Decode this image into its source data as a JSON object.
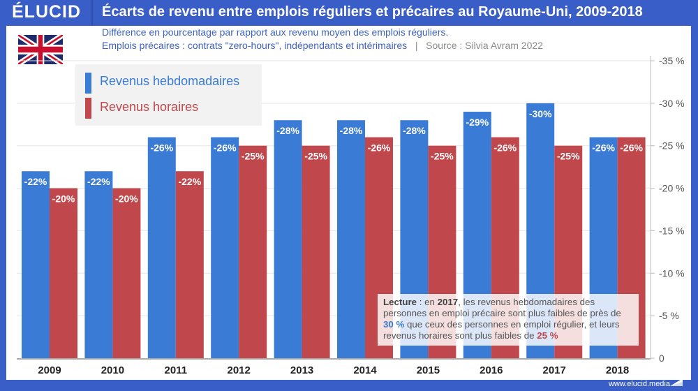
{
  "header": {
    "logo": "ÉLUCID",
    "title": "Écarts de revenu entre emplois réguliers et précaires au Royaume-Uni, 2009-2018",
    "subtitle_line1": "Différence en pourcentage par rapport aux revenu moyen des emplois réguliers.",
    "subtitle_line2": "Emplois précaires : contrats \"zero-hours\", indépendants et intérimaires",
    "separator": "|",
    "source": "Source : Silvia Avram 2022"
  },
  "flag": "united-kingdom-flag",
  "colors": {
    "weekly": "#3a7bd5",
    "hourly": "#c0474b",
    "brand": "#3a5ec8"
  },
  "note": {
    "label": "Lecture",
    "t1": " : en ",
    "year": "2017",
    "t2": ", les revenus hebdomadaires des personnes en emploi précaire sont plus faibles de près de ",
    "weekly_value": "30 %",
    "t3": " que ceux des personnes en emploi régulier, et leurs revenus horaires sont plus faibles de ",
    "hourly_value": "25 %"
  },
  "footer": {
    "url": "www.elucid.media"
  },
  "chart_data": {
    "type": "bar",
    "title": "Écarts de revenu entre emplois réguliers et précaires au Royaume-Uni, 2009-2018",
    "categories": [
      "2009",
      "2010",
      "2011",
      "2012",
      "2013",
      "2014",
      "2015",
      "2016",
      "2017",
      "2018"
    ],
    "series": [
      {
        "name": "Revenus hebdomadaires",
        "color": "#3a7bd5",
        "values": [
          -22,
          -22,
          -26,
          -26,
          -28,
          -28,
          -28,
          -29,
          -30,
          -26
        ],
        "labels": [
          "-22%",
          "-22%",
          "-26%",
          "-26%",
          "-28%",
          "-28%",
          "-28%",
          "-29%",
          "-30%",
          "-26%"
        ]
      },
      {
        "name": "Revenus horaires",
        "color": "#c0474b",
        "values": [
          -20,
          -20,
          -22,
          -25,
          -25,
          -26,
          -25,
          -26,
          -25,
          -26
        ],
        "labels": [
          "-20%",
          "-20%",
          "-22%",
          "-25%",
          "-25%",
          "-26%",
          "-25%",
          "-26%",
          "-25%",
          "-26%"
        ]
      }
    ],
    "xlabel": "",
    "ylabel": "",
    "ylim": [
      0,
      -35
    ],
    "yticks": [
      0,
      -5,
      -10,
      -15,
      -20,
      -25,
      -30,
      -35
    ],
    "ytick_labels": [
      "0",
      "-5 %",
      "-10 %",
      "-15 %",
      "-20 %",
      "-25 %",
      "-30 %",
      "-35 %"
    ],
    "y_axis_side": "right",
    "grid": true,
    "legend": "top-left"
  }
}
